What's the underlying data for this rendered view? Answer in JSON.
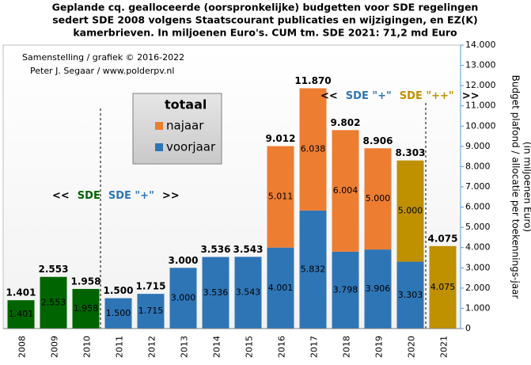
{
  "chart_data": {
    "type": "stacked_bar",
    "title": [
      "Geplande cq. gealloceerde (oorspronkelijke)  budgetten voor SDE regelingen",
      "sedert SDE 2008 volgens Staatscourant publicaties en wijzigingen,  en EZ(K)",
      "kamerbrieven. In miljoenen Euro's. CUM tm. SDE 2021: 71,2 md Euro"
    ],
    "credits": [
      "Samenstelling  / grafiek © 2016-2022",
      "Peter J. Segaar / www.polderpv.nl"
    ],
    "y_axis_label": [
      "Budget plafond / allocatie per toekennings-jaar",
      "(in miljoenen Euro)"
    ],
    "categories": [
      "2008",
      "2009",
      "2010",
      "2011",
      "2012",
      "2013",
      "2014",
      "2015",
      "2016",
      "2017",
      "2018",
      "2019",
      "2020",
      "2021"
    ],
    "series": [
      {
        "name": "voorjaar",
        "color": "#2e75b6",
        "colors": [
          "#006400",
          "#006400",
          "#006400",
          "#2e75b6",
          "#2e75b6",
          "#2e75b6",
          "#2e75b6",
          "#2e75b6",
          "#2e75b6",
          "#2e75b6",
          "#2e75b6",
          "#2e75b6",
          "#2e75b6",
          "#bf9000"
        ],
        "values": [
          1401,
          2553,
          1958,
          1500,
          1715,
          3000,
          3536,
          3543,
          4001,
          5832,
          3798,
          3906,
          3303,
          4075
        ],
        "value_labels": [
          "1.401",
          "2.553",
          "1.958",
          "1.500",
          "1.715",
          "3.000",
          "3.536",
          "3.543",
          "4.001",
          "5.832",
          "3.798",
          "3.906",
          "3.303",
          "4.075"
        ]
      },
      {
        "name": "najaar",
        "color": "#ed7d31",
        "colors": [
          null,
          null,
          null,
          null,
          null,
          null,
          null,
          null,
          "#ed7d31",
          "#ed7d31",
          "#ed7d31",
          "#ed7d31",
          "#bf9000",
          null
        ],
        "values": [
          null,
          null,
          null,
          null,
          null,
          null,
          null,
          null,
          5011,
          6038,
          6004,
          5000,
          5000,
          null
        ],
        "value_labels": [
          null,
          null,
          null,
          null,
          null,
          null,
          null,
          null,
          "5.011",
          "6.038",
          "6.004",
          "5.000",
          "5.000",
          null
        ]
      }
    ],
    "totals": {
      "values": [
        1401,
        2553,
        1958,
        1500,
        1715,
        3000,
        3536,
        3543,
        9012,
        11870,
        9802,
        8906,
        8303,
        4075
      ],
      "value_labels": [
        "1.401",
        "2.553",
        "1.958",
        "1.500",
        "1.715",
        "3.000",
        "3.536",
        "3.543",
        "9.012",
        "11.870",
        "9.802",
        "8.906",
        "8.303",
        "4.075"
      ]
    },
    "legend_title": "totaal",
    "annotations": [
      {
        "parts": [
          {
            "text": "<<",
            "color": "#000000"
          },
          {
            "text": "SDE",
            "color": "#006400"
          },
          {
            "text": "SDE \"+\"",
            "color": "#2e75b6"
          },
          {
            "text": ">>",
            "color": "#000000"
          }
        ]
      },
      {
        "parts": [
          {
            "text": "<<",
            "color": "#000000"
          },
          {
            "text": "SDE \"+\"",
            "color": "#2e75b6"
          },
          {
            "text": "SDE \"++\"",
            "color": "#bf9000"
          },
          {
            "text": ">>",
            "color": "#000000"
          }
        ]
      }
    ],
    "ylim": [
      0,
      14000
    ],
    "yticks": [
      {
        "value": 0,
        "label": "0"
      },
      {
        "value": 1000,
        "label": "1.000"
      },
      {
        "value": 2000,
        "label": "2.000"
      },
      {
        "value": 3000,
        "label": "3.000"
      },
      {
        "value": 4000,
        "label": "4.000"
      },
      {
        "value": 5000,
        "label": "5.000"
      },
      {
        "value": 6000,
        "label": "6.000"
      },
      {
        "value": 7000,
        "label": "7.000"
      },
      {
        "value": 8000,
        "label": "8.000"
      },
      {
        "value": 9000,
        "label": "9.000"
      },
      {
        "value": 10000,
        "label": "10.000"
      },
      {
        "value": 11000,
        "label": "11.000"
      },
      {
        "value": 12000,
        "label": "12.000"
      },
      {
        "value": 13000,
        "label": "13.000"
      },
      {
        "value": 14000,
        "label": "14.000"
      }
    ]
  }
}
